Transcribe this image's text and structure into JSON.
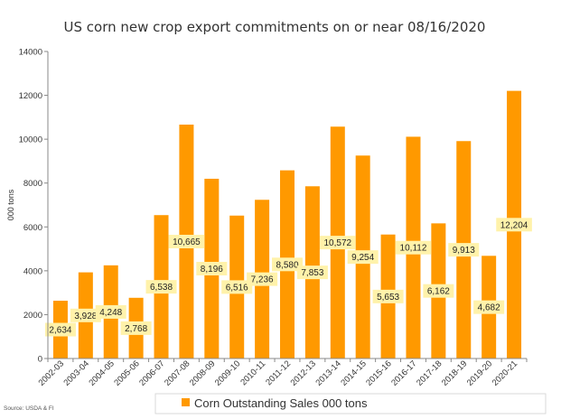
{
  "chart_data": {
    "type": "bar",
    "title": "US corn new crop export commitments on or near 08/16/2020",
    "ylabel": "000 tons",
    "xlabel": "",
    "ylim": [
      0,
      14000
    ],
    "yticks": [
      "0",
      "2000",
      "4000",
      "6000",
      "8000",
      "10000",
      "12000",
      "14000"
    ],
    "categories": [
      "2002-03",
      "2003-04",
      "2004-05",
      "2005-06",
      "2006-07",
      "2007-08",
      "2008-09",
      "2009-10",
      "2010-11",
      "2011-12",
      "2012-13",
      "2013-14",
      "2014-15",
      "2015-16",
      "2016-17",
      "2017-18",
      "2018-19",
      "2019-20",
      "2020-21"
    ],
    "series": [
      {
        "name": "Corn Outstanding Sales 000 tons",
        "values": [
          2634,
          3928,
          4248,
          2768,
          6538,
          10665,
          8196,
          6516,
          7236,
          8580,
          7853,
          10572,
          9254,
          5653,
          10112,
          6162,
          9913,
          4682,
          12204
        ],
        "labels": [
          "2,634",
          "3,928",
          "4,248",
          "2,768",
          "6,538",
          "10,665",
          "8,196",
          "6,516",
          "7,236",
          "8,580",
          "7,853",
          "10,572",
          "9,254",
          "5,653",
          "10,112",
          "6,162",
          "9,913",
          "4,682",
          "12,204"
        ]
      }
    ],
    "grid": false,
    "legend_position": "bottom",
    "source": "Source: USDA & FI",
    "colors": {
      "bar": "#FF9900",
      "label_bg": "#FFF2AA",
      "axis": "#888888",
      "frame": "#D9D9D9"
    }
  }
}
